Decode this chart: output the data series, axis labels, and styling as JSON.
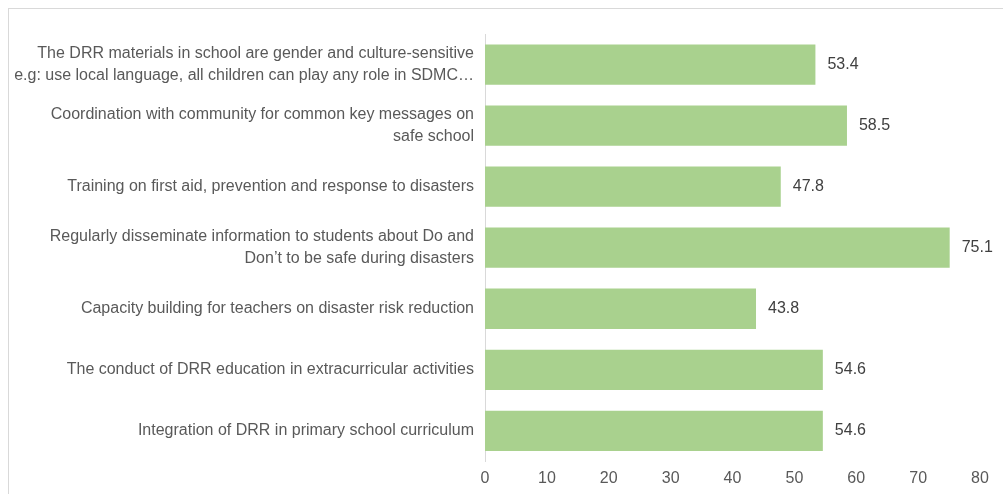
{
  "chart_data": {
    "type": "bar",
    "orientation": "horizontal",
    "categories": [
      "The DRR materials in school are gender and culture-sensitive e.g: use local language, all children can play any role in SDMC…",
      "Coordination with community for common key messages on safe school",
      "Training on first aid, prevention and response to disasters",
      "Regularly disseminate information to students about Do and Don’t to be safe during disasters",
      "Capacity building for teachers on disaster risk reduction",
      "The conduct of DRR education in extracurricular activities",
      "Integration of DRR in primary school curriculum"
    ],
    "values": [
      53.4,
      58.5,
      47.8,
      75.1,
      43.8,
      54.6,
      54.6
    ],
    "color": "#a9d18e",
    "xlim": [
      0,
      80
    ],
    "xticks": [
      0,
      10,
      20,
      30,
      40,
      50,
      60,
      70,
      80
    ],
    "data_labels": true
  }
}
